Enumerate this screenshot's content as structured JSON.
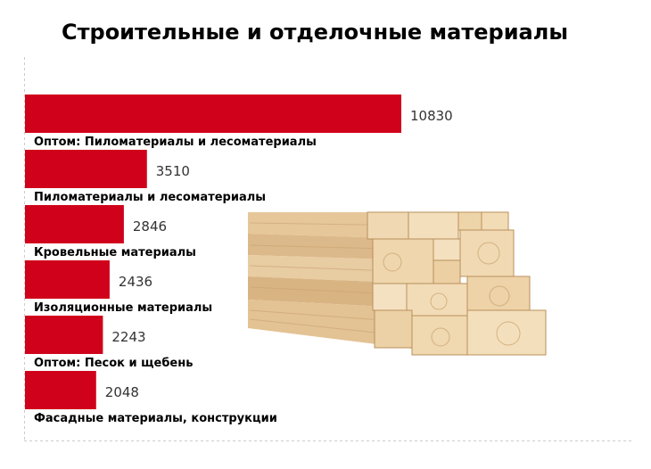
{
  "chart_data": {
    "type": "bar",
    "orientation": "horizontal",
    "title": "Строительные и отделочные материалы",
    "categories": [
      "Оптом: Пиломатериалы и лесоматериалы",
      "Пиломатериалы и лесоматериалы",
      "Кровельные материалы",
      "Изоляционные материалы",
      "Оптом: Песок и щебень",
      "Фасадные материалы, конструкции"
    ],
    "values": [
      10830,
      3510,
      2846,
      2436,
      2243,
      2048
    ],
    "bar_color": "#d0021b",
    "xlim": [
      0,
      10830
    ],
    "grid": false,
    "legend": "none",
    "image": "lumber-stack"
  }
}
